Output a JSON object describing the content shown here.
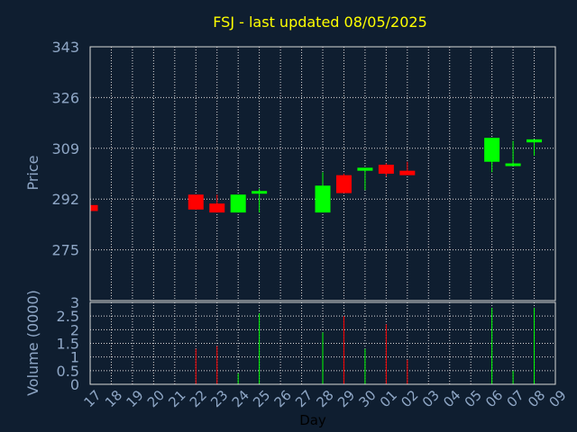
{
  "theme": {
    "background": "#0f1e30",
    "plot_border": "#d9d9d9",
    "grid": "#d9d9d9",
    "axis_text": "#8fa7c6",
    "title_color": "#ffff00",
    "up_color": "#00ff00",
    "down_color": "#ff0000"
  },
  "chart_data": {
    "type": "candlestick",
    "title": "FSJ - last updated 08/05/2025",
    "xlabel": "Day",
    "price_panel": {
      "ylabel": "Price",
      "ylim": [
        258,
        343
      ],
      "yticks": [
        343,
        326,
        309,
        292,
        275
      ],
      "grid": true
    },
    "volume_panel": {
      "ylabel": "Volume (0000)",
      "ylim": [
        0,
        3
      ],
      "yticks": [
        "3",
        "2.5",
        "2",
        "1.5",
        "1",
        "0.5",
        "0"
      ],
      "ytick_values": [
        3,
        2.5,
        2,
        1.5,
        1,
        0.5,
        0
      ],
      "grid": true
    },
    "x_ticks": [
      "17",
      "18",
      "19",
      "20",
      "21",
      "22",
      "23",
      "24",
      "25",
      "26",
      "27",
      "28",
      "29",
      "30",
      "01",
      "02",
      "03",
      "04",
      "05",
      "06",
      "07",
      "08",
      "09"
    ],
    "candles": [
      {
        "x": "17",
        "open": 290.0,
        "close": 288.0,
        "high": 290.0,
        "low": 288.0,
        "volume": 0
      },
      {
        "x": "22",
        "open": 293.5,
        "close": 288.5,
        "high": 293.5,
        "low": 288.5,
        "volume": 1.3
      },
      {
        "x": "23",
        "open": 290.5,
        "close": 287.5,
        "high": 293.5,
        "low": 287.5,
        "volume": 1.4
      },
      {
        "x": "24",
        "open": 287.5,
        "close": 293.5,
        "high": 293.5,
        "low": 287.5,
        "volume": 0.4
      },
      {
        "x": "25",
        "open": 294.0,
        "close": 294.5,
        "high": 295.5,
        "low": 287.5,
        "volume": 2.6
      },
      {
        "x": "28",
        "open": 287.5,
        "close": 296.5,
        "high": 301.0,
        "low": 287.5,
        "volume": 1.9
      },
      {
        "x": "29",
        "open": 300.0,
        "close": 294.0,
        "high": 300.5,
        "low": 294.0,
        "volume": 2.5
      },
      {
        "x": "30",
        "open": 301.5,
        "close": 302.5,
        "high": 302.5,
        "low": 295.0,
        "volume": 1.3
      },
      {
        "x": "01",
        "open": 303.5,
        "close": 300.5,
        "high": 304.0,
        "low": 299.5,
        "volume": 2.2
      },
      {
        "x": "02",
        "open": 301.5,
        "close": 300.0,
        "high": 304.5,
        "low": 300.0,
        "volume": 0.9
      },
      {
        "x": "06",
        "open": 304.5,
        "close": 312.5,
        "high": 312.5,
        "low": 301.0,
        "volume": 2.8
      },
      {
        "x": "07",
        "open": 303.5,
        "close": 303.5,
        "high": 311.5,
        "low": 303.5,
        "volume": 0.5
      },
      {
        "x": "08",
        "open": 311.0,
        "close": 312.0,
        "high": 312.0,
        "low": 306.5,
        "volume": 2.8
      }
    ]
  }
}
